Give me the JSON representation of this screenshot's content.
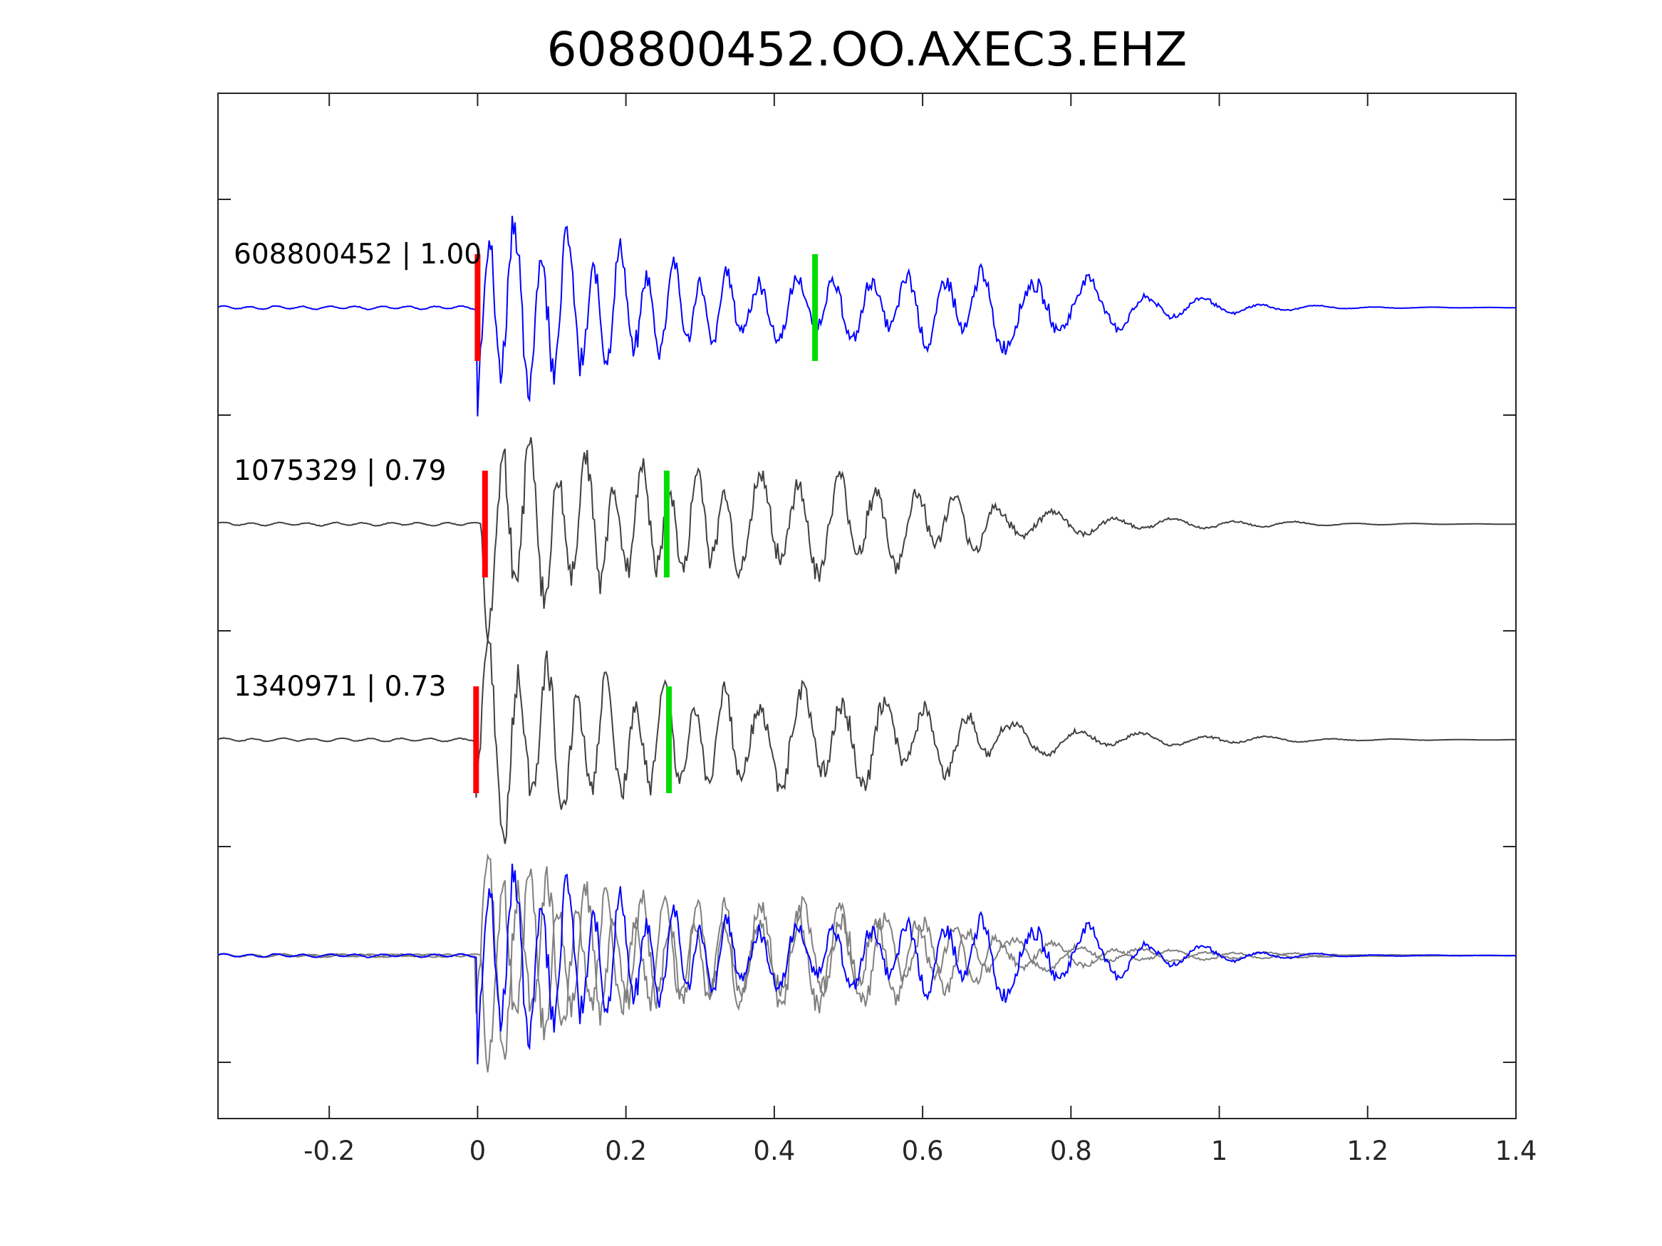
{
  "chart_data": {
    "type": "line",
    "title": "608800452.OO.AXEC3.EHZ",
    "xlabel": "",
    "ylabel": "",
    "xlim": [
      -0.35,
      1.4
    ],
    "x_ticks": [
      "-0.2",
      "0",
      "0.2",
      "0.4",
      "0.6",
      "0.8",
      "1",
      "1.2",
      "1.4"
    ],
    "x_tick_values": [
      -0.2,
      0,
      0.2,
      0.4,
      0.6,
      0.8,
      1.0,
      1.2,
      1.4
    ],
    "grid": false,
    "colors": {
      "reference": "#0000ff",
      "match": "#404040",
      "overlay_match": "#808080",
      "p_pick": "#ff0000",
      "s_pick": "#00dd00",
      "axes": "#262626"
    },
    "traces": [
      {
        "label": "608800452 | 1.00",
        "event_id": "608800452",
        "correlation": 1.0,
        "color": "reference",
        "p_pick": 0.0,
        "s_pick": 0.455,
        "onset": 0.0,
        "peak_amplitude": 0.95
      },
      {
        "label": "1075329 | 0.79",
        "event_id": "1075329",
        "correlation": 0.79,
        "color": "match",
        "p_pick": 0.01,
        "s_pick": 0.255,
        "onset": 0.005,
        "peak_amplitude": 0.9
      },
      {
        "label": "1340971 | 0.73",
        "event_id": "1340971",
        "correlation": 0.73,
        "color": "match",
        "p_pick": -0.002,
        "s_pick": 0.258,
        "onset": -0.003,
        "peak_amplitude": 0.9
      }
    ],
    "overlay": {
      "description_label": "",
      "series": [
        "608800452",
        "1075329",
        "1340971"
      ]
    }
  }
}
